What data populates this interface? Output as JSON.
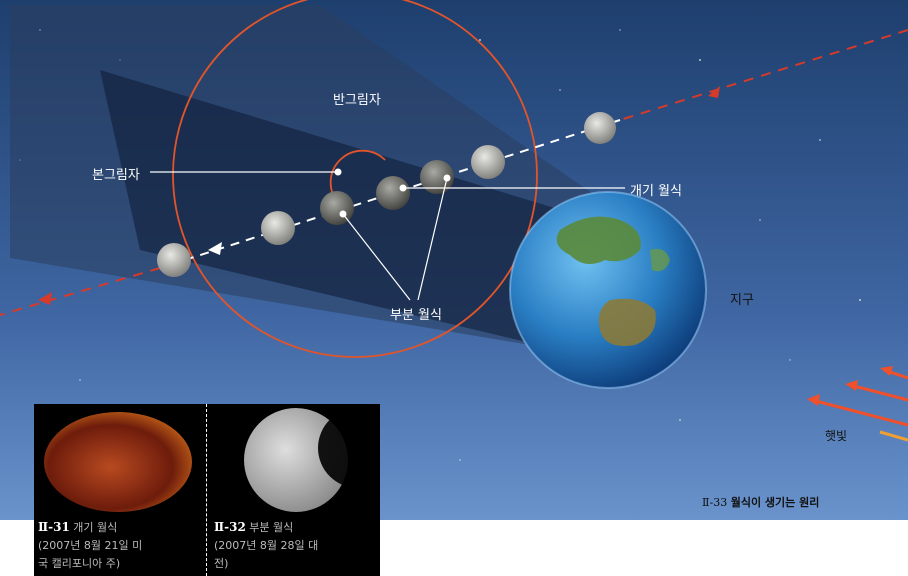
{
  "labels": {
    "penumbra": "반그림자",
    "umbra": "본그림자",
    "total_eclipse": "개기 월식",
    "partial_eclipse": "부분 월식",
    "earth": "지구",
    "sunlight": "햇빛"
  },
  "photos": [
    {
      "number": "Ⅱ-31",
      "title": "개기 월식",
      "line2": "(2007년 8월 21일 미",
      "line3": "국 캘리포니아 주)"
    },
    {
      "number": "Ⅱ-32",
      "title": "부분 월식",
      "line2": "(2007년 8월 28일 대",
      "line3": "전)"
    }
  ],
  "figure_caption": {
    "number": "Ⅱ-33",
    "title": "월식이 생기는 원리"
  },
  "colors": {
    "sky_top": "#1e3f6e",
    "sky_bottom": "#5e88c4",
    "umbra_cone": "#0d1a33",
    "penumbra_cone": "#2a3e5e",
    "orbit": "#e2552a",
    "sun_rays": "#f0502a"
  }
}
